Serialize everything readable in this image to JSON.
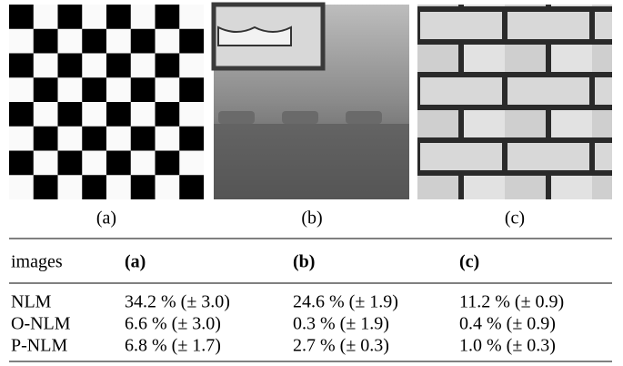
{
  "figure": {
    "captions": [
      "(a)",
      "(b)",
      "(c)"
    ]
  },
  "table": {
    "header": [
      "images",
      "(a)",
      "(b)",
      "(c)"
    ],
    "rows": [
      [
        "NLM",
        "34.2 % (± 3.0)",
        "24.6 % (± 1.9)",
        "11.2 % (± 0.9)"
      ],
      [
        "O-NLM",
        "6.6 % (± 3.0)",
        "0.3 % (± 1.9)",
        "0.4 % (± 0.9)"
      ],
      [
        "P-NLM",
        "6.8 % (± 1.7)",
        "2.7 % (± 0.3)",
        "1.0 % (± 0.3)"
      ]
    ]
  }
}
